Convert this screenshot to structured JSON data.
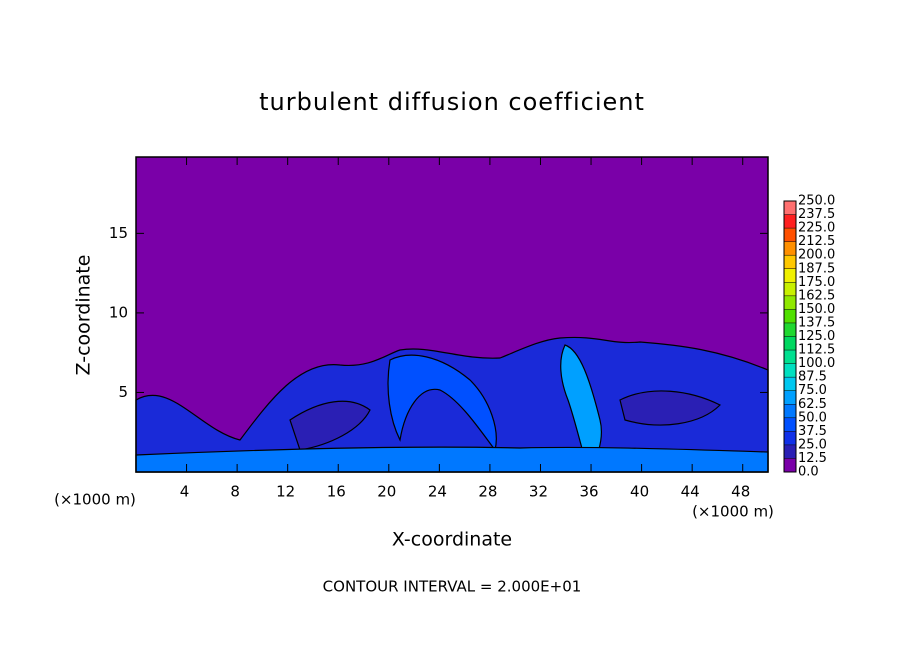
{
  "chart_data": {
    "type": "contour",
    "title": "turbulent diffusion coefficient",
    "xlabel": "X-coordinate",
    "ylabel": "Z-coordinate",
    "x_unit_labels": [
      "(×1000 m)",
      "(×1000 m)"
    ],
    "footer": "CONTOUR INTERVAL = 2.000E+01",
    "xlim": [
      0,
      50
    ],
    "xticks": [
      4,
      8,
      12,
      16,
      20,
      24,
      28,
      32,
      36,
      40,
      44,
      48
    ],
    "ylim": [
      0,
      19.8
    ],
    "yticks": [
      5,
      10,
      15
    ],
    "background_color": "#7a00a8",
    "colorbar": {
      "levels": [
        {
          "value": 0,
          "label": "0.0"
        },
        12.5,
        {
          "value": 25,
          "label": "25.0"
        },
        37.5,
        {
          "value": 50,
          "label": "50.0"
        },
        62.5,
        {
          "value": 75,
          "label": "75.0"
        },
        87.5,
        {
          "value": 100,
          "label": "100.0"
        },
        112.5,
        {
          "value": 125,
          "label": "125.0"
        },
        137.5,
        {
          "value": 150,
          "label": "150.0"
        },
        162.5,
        {
          "value": 175,
          "label": "175.0"
        },
        187.5,
        {
          "value": 200,
          "label": "200.0"
        },
        212.5,
        {
          "value": 225,
          "label": "225.0"
        },
        237.5,
        {
          "value": 250,
          "label": "250.0"
        }
      ],
      "colors": [
        "#7a00a8",
        "#2a1fb4",
        "#1030e8",
        "#0050ff",
        "#0078ff",
        "#00a0ff",
        "#00c8f0",
        "#00e0c0",
        "#00e090",
        "#00d860",
        "#20d830",
        "#50e000",
        "#90e800",
        "#c8f000",
        "#f0f000",
        "#ffc800",
        "#ff9000",
        "#ff5000",
        "#ff2020",
        "#ff7070"
      ]
    }
  }
}
